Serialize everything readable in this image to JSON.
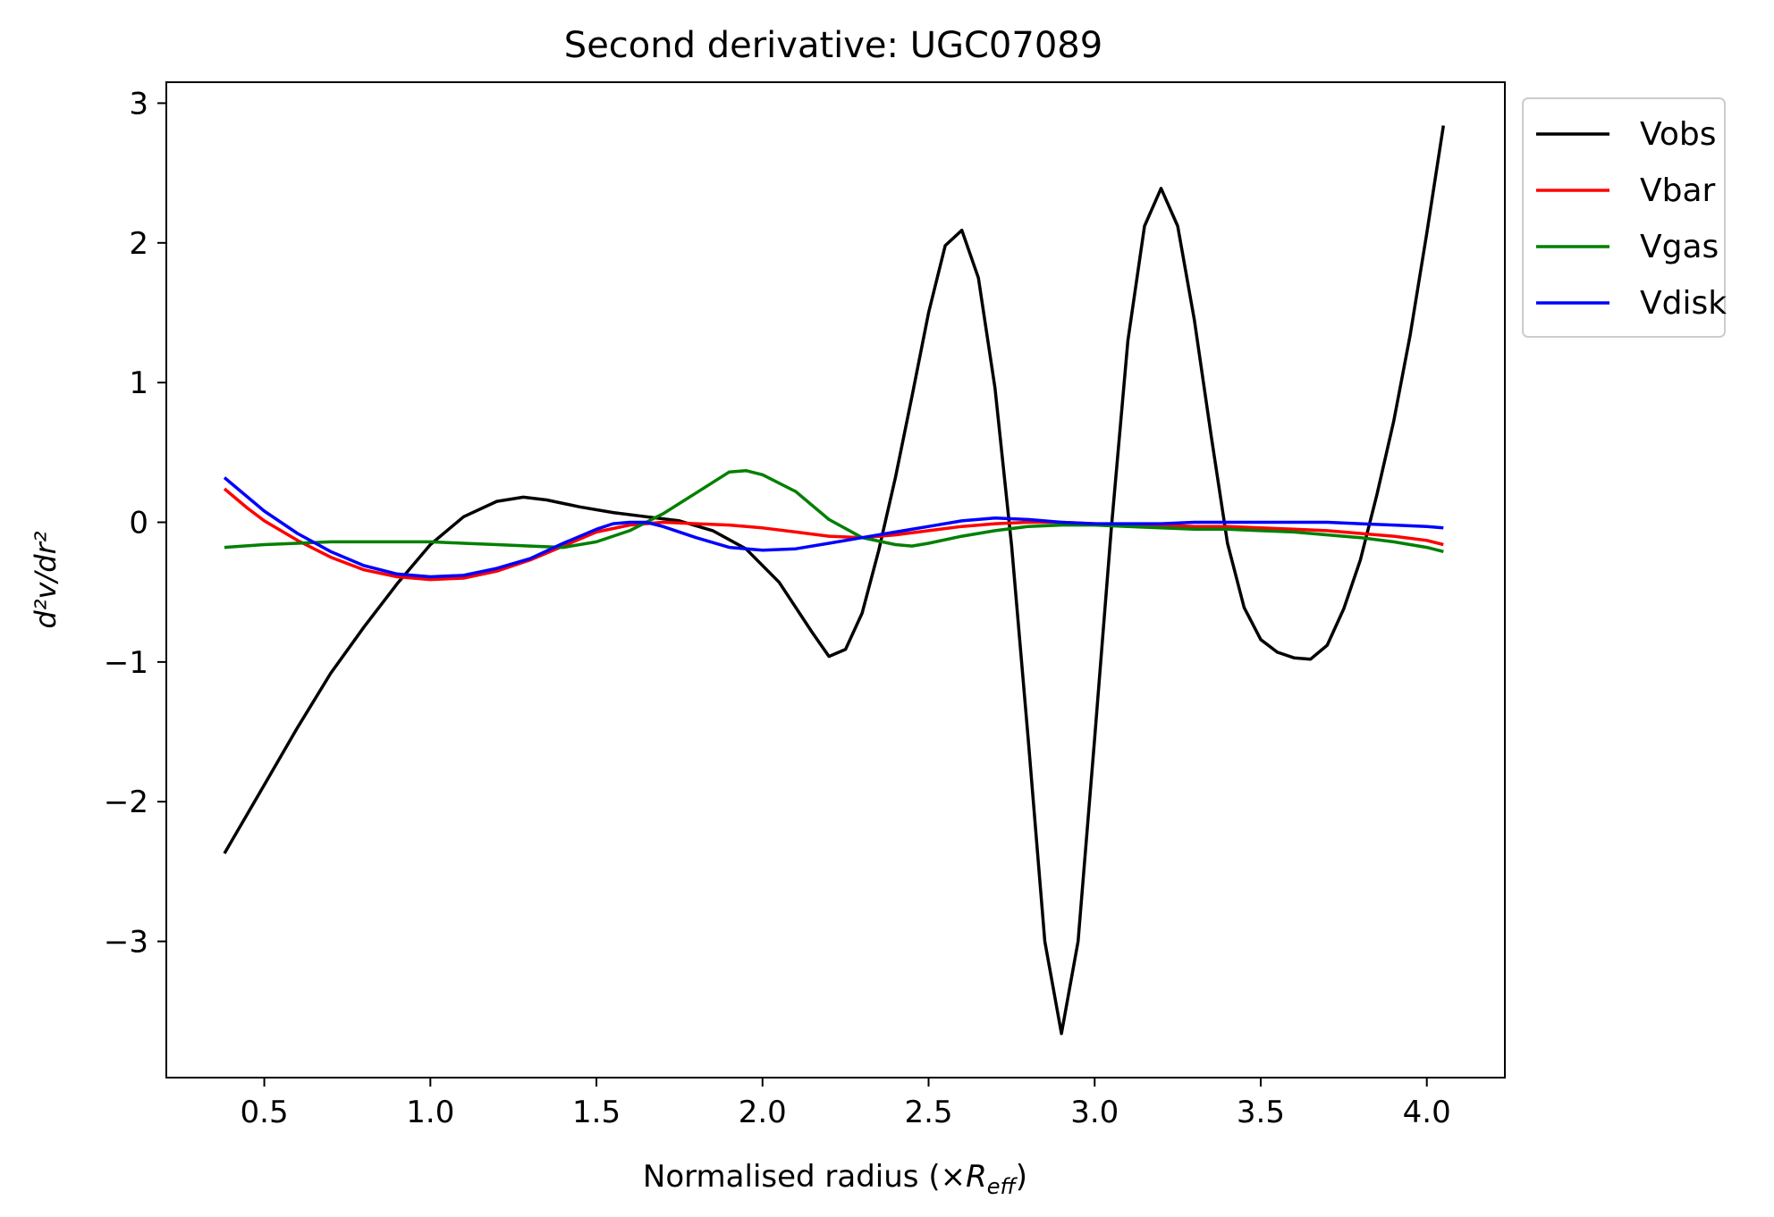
{
  "chart_data": {
    "type": "line",
    "title": "Second derivative: UGC07089",
    "xlabel": "Normalised radius (×R_eff)",
    "xlabel_parts": {
      "prefix": "Normalised radius (×",
      "var": "R",
      "sub": "eff",
      "suffix": ")"
    },
    "ylabel": "d²v/dr²",
    "xlim": [
      0.205,
      4.235
    ],
    "ylim": [
      -3.975,
      3.15
    ],
    "xticks": [
      0.5,
      1.0,
      1.5,
      2.0,
      2.5,
      3.0,
      3.5,
      4.0
    ],
    "xtick_labels": [
      "0.5",
      "1.0",
      "1.5",
      "2.0",
      "2.5",
      "3.0",
      "3.5",
      "4.0"
    ],
    "yticks": [
      -3,
      -2,
      -1,
      0,
      1,
      2,
      3
    ],
    "ytick_labels": [
      "−3",
      "−2",
      "−1",
      "0",
      "1",
      "2",
      "3"
    ],
    "grid": false,
    "legend_position": "outside upper-right",
    "series": [
      {
        "name": "Vobs",
        "color": "#000000",
        "points": [
          [
            0.38,
            -2.37
          ],
          [
            0.5,
            -1.88
          ],
          [
            0.6,
            -1.47
          ],
          [
            0.7,
            -1.08
          ],
          [
            0.8,
            -0.75
          ],
          [
            0.9,
            -0.44
          ],
          [
            1.0,
            -0.16
          ],
          [
            1.1,
            0.04
          ],
          [
            1.2,
            0.15
          ],
          [
            1.28,
            0.18
          ],
          [
            1.35,
            0.16
          ],
          [
            1.45,
            0.11
          ],
          [
            1.55,
            0.07
          ],
          [
            1.65,
            0.04
          ],
          [
            1.75,
            0.01
          ],
          [
            1.85,
            -0.06
          ],
          [
            1.95,
            -0.19
          ],
          [
            2.05,
            -0.43
          ],
          [
            2.15,
            -0.79
          ],
          [
            2.2,
            -0.96
          ],
          [
            2.25,
            -0.91
          ],
          [
            2.3,
            -0.65
          ],
          [
            2.35,
            -0.2
          ],
          [
            2.4,
            0.32
          ],
          [
            2.45,
            0.9
          ],
          [
            2.5,
            1.5
          ],
          [
            2.55,
            1.98
          ],
          [
            2.6,
            2.09
          ],
          [
            2.65,
            1.75
          ],
          [
            2.7,
            0.96
          ],
          [
            2.75,
            -0.17
          ],
          [
            2.8,
            -1.55
          ],
          [
            2.85,
            -3.0
          ],
          [
            2.9,
            -3.66
          ],
          [
            2.95,
            -3.0
          ],
          [
            3.0,
            -1.55
          ],
          [
            3.05,
            -0.05
          ],
          [
            3.1,
            1.3
          ],
          [
            3.15,
            2.12
          ],
          [
            3.2,
            2.39
          ],
          [
            3.25,
            2.12
          ],
          [
            3.3,
            1.45
          ],
          [
            3.35,
            0.63
          ],
          [
            3.4,
            -0.15
          ],
          [
            3.45,
            -0.61
          ],
          [
            3.5,
            -0.84
          ],
          [
            3.55,
            -0.93
          ],
          [
            3.6,
            -0.97
          ],
          [
            3.65,
            -0.98
          ],
          [
            3.7,
            -0.88
          ],
          [
            3.75,
            -0.62
          ],
          [
            3.8,
            -0.27
          ],
          [
            3.85,
            0.2
          ],
          [
            3.9,
            0.72
          ],
          [
            3.95,
            1.34
          ],
          [
            4.0,
            2.07
          ],
          [
            4.05,
            2.84
          ]
        ]
      },
      {
        "name": "Vbar",
        "color": "#ff0000",
        "points": [
          [
            0.38,
            0.24
          ],
          [
            0.45,
            0.1
          ],
          [
            0.5,
            0.01
          ],
          [
            0.6,
            -0.13
          ],
          [
            0.7,
            -0.25
          ],
          [
            0.8,
            -0.34
          ],
          [
            0.9,
            -0.39
          ],
          [
            1.0,
            -0.41
          ],
          [
            1.1,
            -0.4
          ],
          [
            1.2,
            -0.35
          ],
          [
            1.3,
            -0.27
          ],
          [
            1.4,
            -0.17
          ],
          [
            1.5,
            -0.07
          ],
          [
            1.6,
            -0.02
          ],
          [
            1.7,
            0.0
          ],
          [
            1.8,
            -0.01
          ],
          [
            1.9,
            -0.02
          ],
          [
            2.0,
            -0.04
          ],
          [
            2.1,
            -0.07
          ],
          [
            2.2,
            -0.1
          ],
          [
            2.3,
            -0.11
          ],
          [
            2.4,
            -0.09
          ],
          [
            2.5,
            -0.06
          ],
          [
            2.6,
            -0.03
          ],
          [
            2.7,
            -0.01
          ],
          [
            2.8,
            0.0
          ],
          [
            2.9,
            0.0
          ],
          [
            3.0,
            -0.01
          ],
          [
            3.1,
            -0.02
          ],
          [
            3.2,
            -0.02
          ],
          [
            3.3,
            -0.03
          ],
          [
            3.4,
            -0.03
          ],
          [
            3.5,
            -0.04
          ],
          [
            3.6,
            -0.05
          ],
          [
            3.7,
            -0.06
          ],
          [
            3.8,
            -0.08
          ],
          [
            3.9,
            -0.1
          ],
          [
            4.0,
            -0.13
          ],
          [
            4.05,
            -0.16
          ]
        ]
      },
      {
        "name": "Vgas",
        "color": "#008000",
        "points": [
          [
            0.38,
            -0.18
          ],
          [
            0.5,
            -0.16
          ],
          [
            0.6,
            -0.15
          ],
          [
            0.7,
            -0.14
          ],
          [
            0.8,
            -0.14
          ],
          [
            0.9,
            -0.14
          ],
          [
            1.0,
            -0.14
          ],
          [
            1.1,
            -0.15
          ],
          [
            1.2,
            -0.16
          ],
          [
            1.3,
            -0.17
          ],
          [
            1.4,
            -0.18
          ],
          [
            1.5,
            -0.14
          ],
          [
            1.6,
            -0.06
          ],
          [
            1.7,
            0.06
          ],
          [
            1.8,
            0.21
          ],
          [
            1.9,
            0.36
          ],
          [
            1.95,
            0.37
          ],
          [
            2.0,
            0.34
          ],
          [
            2.1,
            0.22
          ],
          [
            2.2,
            0.02
          ],
          [
            2.3,
            -0.11
          ],
          [
            2.4,
            -0.16
          ],
          [
            2.45,
            -0.17
          ],
          [
            2.5,
            -0.15
          ],
          [
            2.6,
            -0.1
          ],
          [
            2.7,
            -0.06
          ],
          [
            2.8,
            -0.03
          ],
          [
            2.9,
            -0.02
          ],
          [
            3.0,
            -0.02
          ],
          [
            3.1,
            -0.03
          ],
          [
            3.2,
            -0.04
          ],
          [
            3.3,
            -0.05
          ],
          [
            3.4,
            -0.05
          ],
          [
            3.5,
            -0.06
          ],
          [
            3.6,
            -0.07
          ],
          [
            3.7,
            -0.09
          ],
          [
            3.8,
            -0.11
          ],
          [
            3.9,
            -0.14
          ],
          [
            4.0,
            -0.18
          ],
          [
            4.05,
            -0.21
          ]
        ]
      },
      {
        "name": "Vdisk",
        "color": "#0000ff",
        "points": [
          [
            0.38,
            0.32
          ],
          [
            0.45,
            0.18
          ],
          [
            0.5,
            0.08
          ],
          [
            0.6,
            -0.08
          ],
          [
            0.7,
            -0.21
          ],
          [
            0.8,
            -0.31
          ],
          [
            0.9,
            -0.37
          ],
          [
            1.0,
            -0.39
          ],
          [
            1.1,
            -0.38
          ],
          [
            1.2,
            -0.33
          ],
          [
            1.3,
            -0.26
          ],
          [
            1.4,
            -0.15
          ],
          [
            1.5,
            -0.05
          ],
          [
            1.55,
            -0.01
          ],
          [
            1.6,
            0.0
          ],
          [
            1.65,
            0.0
          ],
          [
            1.7,
            -0.03
          ],
          [
            1.8,
            -0.11
          ],
          [
            1.9,
            -0.18
          ],
          [
            2.0,
            -0.2
          ],
          [
            2.1,
            -0.19
          ],
          [
            2.2,
            -0.15
          ],
          [
            2.3,
            -0.11
          ],
          [
            2.4,
            -0.07
          ],
          [
            2.5,
            -0.03
          ],
          [
            2.6,
            0.01
          ],
          [
            2.7,
            0.03
          ],
          [
            2.8,
            0.02
          ],
          [
            2.9,
            0.0
          ],
          [
            3.0,
            -0.01
          ],
          [
            3.1,
            -0.01
          ],
          [
            3.2,
            -0.01
          ],
          [
            3.3,
            0.0
          ],
          [
            3.4,
            0.0
          ],
          [
            3.5,
            0.0
          ],
          [
            3.6,
            0.0
          ],
          [
            3.7,
            0.0
          ],
          [
            3.8,
            -0.01
          ],
          [
            3.9,
            -0.02
          ],
          [
            4.0,
            -0.03
          ],
          [
            4.05,
            -0.04
          ]
        ]
      }
    ]
  }
}
